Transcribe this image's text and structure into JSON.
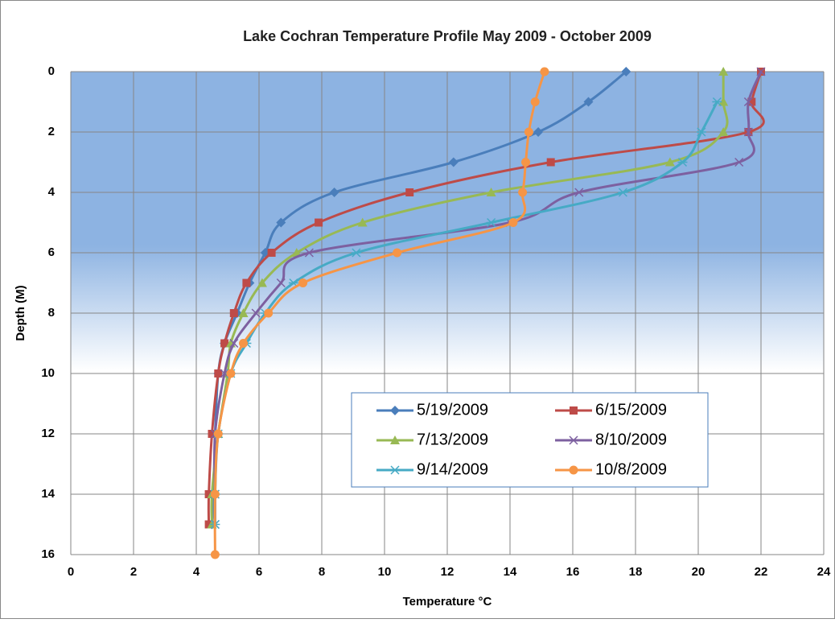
{
  "chart_data": {
    "type": "scatter-smooth",
    "title": "Lake Cochran  Temperature Profile  May 2009 - October 2009",
    "x_label": "Temperature °C",
    "y_label": "Depth (M)",
    "xlim": [
      0,
      24
    ],
    "xticks": [
      0,
      2,
      4,
      6,
      8,
      10,
      12,
      14,
      16,
      18,
      20,
      22,
      24
    ],
    "ylim": [
      0,
      16
    ],
    "yticks": [
      0,
      2,
      4,
      6,
      8,
      10,
      12,
      14,
      16
    ],
    "y_reversed": true,
    "grid": true,
    "legend": "lower-center",
    "series": [
      {
        "name": "5/19/2009",
        "color": "#4a7ebb",
        "marker": "diamond",
        "x": [
          17.7,
          16.5,
          14.9,
          12.2,
          8.4,
          6.7,
          6.2,
          5.7,
          5.3,
          4.9,
          4.7,
          4.6,
          4.55,
          4.5
        ],
        "values": [
          0,
          1,
          2,
          3,
          4,
          5,
          6,
          7,
          8,
          9,
          10,
          12,
          14,
          15
        ]
      },
      {
        "name": "6/15/2009",
        "color": "#be4b48",
        "marker": "square",
        "x": [
          22.0,
          21.7,
          21.6,
          15.3,
          10.8,
          7.9,
          6.4,
          5.6,
          5.2,
          4.9,
          4.7,
          4.5,
          4.4,
          4.4
        ],
        "values": [
          0,
          1,
          2,
          3,
          4,
          5,
          6,
          7,
          8,
          9,
          10,
          12,
          14,
          15
        ]
      },
      {
        "name": "7/13/2009",
        "color": "#98b954",
        "marker": "triangle",
        "x": [
          20.8,
          20.8,
          20.8,
          19.1,
          13.4,
          9.3,
          7.2,
          6.1,
          5.5,
          5.1,
          5.0,
          4.7,
          4.5,
          4.5
        ],
        "values": [
          0,
          1,
          2,
          3,
          4,
          5,
          6,
          7,
          8,
          9,
          10,
          12,
          14,
          15
        ]
      },
      {
        "name": "8/10/2009",
        "color": "#7d60a0",
        "marker": "x",
        "x": [
          22.0,
          21.6,
          21.6,
          21.3,
          16.2,
          14.0,
          7.6,
          6.7,
          5.9,
          5.2,
          4.9,
          4.6,
          4.6,
          4.6
        ],
        "values": [
          0,
          1,
          2,
          3,
          4,
          5,
          6,
          7,
          8,
          9,
          10,
          12,
          14,
          15
        ]
      },
      {
        "name": "9/14/2009",
        "color": "#46aac5",
        "marker": "star",
        "x": [
          20.6,
          20.1,
          19.5,
          17.6,
          13.4,
          9.1,
          7.1,
          6.2,
          5.6,
          5.1,
          4.7,
          4.6,
          4.6
        ],
        "values": [
          1,
          2,
          3,
          4,
          5,
          6,
          7,
          8,
          9,
          10,
          12,
          14,
          15
        ]
      },
      {
        "name": "10/8/2009",
        "color": "#f69546",
        "marker": "circle",
        "x": [
          15.1,
          14.8,
          14.6,
          14.5,
          14.4,
          14.1,
          10.4,
          7.4,
          6.3,
          5.5,
          5.1,
          4.7,
          4.6,
          4.6
        ],
        "values": [
          0,
          1,
          2,
          3,
          4,
          5,
          6,
          7,
          8,
          9,
          10,
          12,
          14,
          16
        ]
      }
    ]
  }
}
